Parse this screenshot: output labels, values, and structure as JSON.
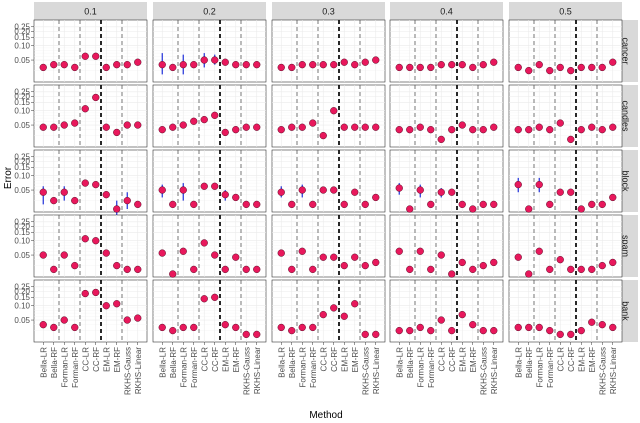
{
  "chart_data": {
    "type": "scatter",
    "xlabel": "Method",
    "ylabel": "Error",
    "y_scale": "log",
    "ylim": [
      0.02,
      0.3
    ],
    "y_ticks": [
      0.05,
      0.1,
      0.15,
      0.2,
      0.25
    ],
    "y_tick_labels": [
      "0.05",
      "0.10",
      "0.15",
      "0.20",
      "0.25"
    ],
    "methods": [
      "Bella-LR",
      "Bella-RF",
      "Forman-LR",
      "Forman-RF",
      "CC-LR",
      "CC-RF",
      "EM-LR",
      "EM-RF",
      "RKHS-Gauss",
      "RKHS-Linear"
    ],
    "columns": [
      "0.1",
      "0.2",
      "0.3",
      "0.4",
      "0.5"
    ],
    "rows": [
      "cancer",
      "candles",
      "block",
      "spam",
      "bank"
    ],
    "thin_separators_after": [
      2,
      4,
      8
    ],
    "thick_separators_after": [
      6,
      8
    ],
    "values": {
      "cancer": [
        [
          0.035,
          0.04,
          0.04,
          0.035,
          0.06,
          0.06,
          0.035,
          0.04,
          0.04,
          0.045
        ],
        [
          0.04,
          0.035,
          0.04,
          0.04,
          0.05,
          0.05,
          0.045,
          0.04,
          0.04,
          0.04
        ],
        [
          0.035,
          0.035,
          0.04,
          0.04,
          0.04,
          0.04,
          0.045,
          0.04,
          0.045,
          0.05
        ],
        [
          0.035,
          0.035,
          0.035,
          0.035,
          0.04,
          0.04,
          0.04,
          0.035,
          0.04,
          0.045
        ],
        [
          0.035,
          0.03,
          0.04,
          0.03,
          0.035,
          0.03,
          0.035,
          0.035,
          0.035,
          0.045
        ]
      ],
      "candles": [
        [
          0.045,
          0.045,
          0.05,
          0.055,
          0.11,
          0.19,
          0.045,
          0.035,
          0.05,
          0.05
        ],
        [
          0.04,
          0.045,
          0.05,
          0.06,
          0.065,
          0.08,
          0.035,
          0.04,
          0.045,
          0.045
        ],
        [
          0.04,
          0.045,
          0.045,
          0.055,
          0.03,
          0.1,
          0.045,
          0.045,
          0.045,
          0.045
        ],
        [
          0.04,
          0.04,
          0.045,
          0.04,
          0.025,
          0.04,
          0.05,
          0.04,
          0.04,
          0.045
        ],
        [
          0.04,
          0.04,
          0.045,
          0.04,
          0.055,
          0.025,
          0.04,
          0.045,
          0.04,
          0.045
        ]
      ],
      "block": [
        [
          0.045,
          0.03,
          0.045,
          0.03,
          0.07,
          0.065,
          0.04,
          0.02,
          0.03,
          0.025
        ],
        [
          0.05,
          0.025,
          0.05,
          0.025,
          0.06,
          0.06,
          0.04,
          0.035,
          0.025,
          0.025
        ],
        [
          0.045,
          0.025,
          0.05,
          0.025,
          0.05,
          0.05,
          0.025,
          0.045,
          0.025,
          0.035
        ],
        [
          0.055,
          0.02,
          0.05,
          0.025,
          0.045,
          0.045,
          0.025,
          0.02,
          0.025,
          0.025
        ],
        [
          0.065,
          0.02,
          0.065,
          0.025,
          0.045,
          0.045,
          0.02,
          0.025,
          0.025,
          0.035
        ]
      ],
      "spam": [
        [
          0.05,
          0.025,
          0.05,
          0.03,
          0.11,
          0.1,
          0.055,
          0.03,
          0.025,
          0.025
        ],
        [
          0.055,
          0.02,
          0.06,
          0.025,
          0.09,
          0.05,
          0.025,
          0.045,
          0.025,
          0.025
        ],
        [
          0.055,
          0.025,
          0.06,
          0.025,
          0.045,
          0.045,
          0.03,
          0.045,
          0.03,
          0.035
        ],
        [
          0.06,
          0.025,
          0.06,
          0.025,
          0.05,
          0.02,
          0.035,
          0.025,
          0.03,
          0.035
        ],
        [
          0.045,
          0.02,
          0.06,
          0.025,
          0.04,
          0.025,
          0.025,
          0.025,
          0.03,
          0.035
        ]
      ],
      "bank": [
        [
          0.04,
          0.035,
          0.05,
          0.035,
          0.18,
          0.19,
          0.1,
          0.11,
          0.05,
          0.055
        ],
        [
          0.035,
          0.03,
          0.035,
          0.035,
          0.14,
          0.15,
          0.04,
          0.035,
          0.025,
          0.025
        ],
        [
          0.035,
          0.03,
          0.035,
          0.035,
          0.065,
          0.09,
          0.06,
          0.11,
          0.025,
          0.025
        ],
        [
          0.03,
          0.03,
          0.035,
          0.03,
          0.05,
          0.03,
          0.065,
          0.04,
          0.03,
          0.03
        ],
        [
          0.035,
          0.035,
          0.035,
          0.03,
          0.025,
          0.025,
          0.03,
          0.045,
          0.04,
          0.035
        ]
      ]
    },
    "error_bars": {
      "cancer": [
        [],
        [
          [
            0,
            0.025,
            0.07
          ],
          [
            2,
            0.025,
            0.065
          ],
          [
            4,
            0.035,
            0.07
          ],
          [
            5,
            0.04,
            0.065
          ]
        ],
        [],
        [],
        []
      ],
      "candles": [
        [],
        [],
        [],
        [],
        []
      ],
      "block": [
        [
          [
            0,
            0.025,
            0.06
          ],
          [
            2,
            0.03,
            0.06
          ],
          [
            7,
            0.015,
            0.03
          ],
          [
            8,
            0.02,
            0.045
          ]
        ],
        [
          [
            0,
            0.035,
            0.065
          ],
          [
            2,
            0.03,
            0.07
          ],
          [
            6,
            0.03,
            0.05
          ]
        ],
        [
          [
            0,
            0.035,
            0.06
          ],
          [
            2,
            0.035,
            0.065
          ]
        ],
        [
          [
            0,
            0.04,
            0.07
          ],
          [
            2,
            0.035,
            0.065
          ],
          [
            4,
            0.035,
            0.055
          ]
        ],
        [
          [
            0,
            0.045,
            0.09
          ],
          [
            2,
            0.045,
            0.09
          ]
        ]
      ],
      "spam": [
        [],
        [],
        [],
        [],
        []
      ],
      "bank": [
        [],
        [],
        [],
        [],
        []
      ]
    }
  }
}
